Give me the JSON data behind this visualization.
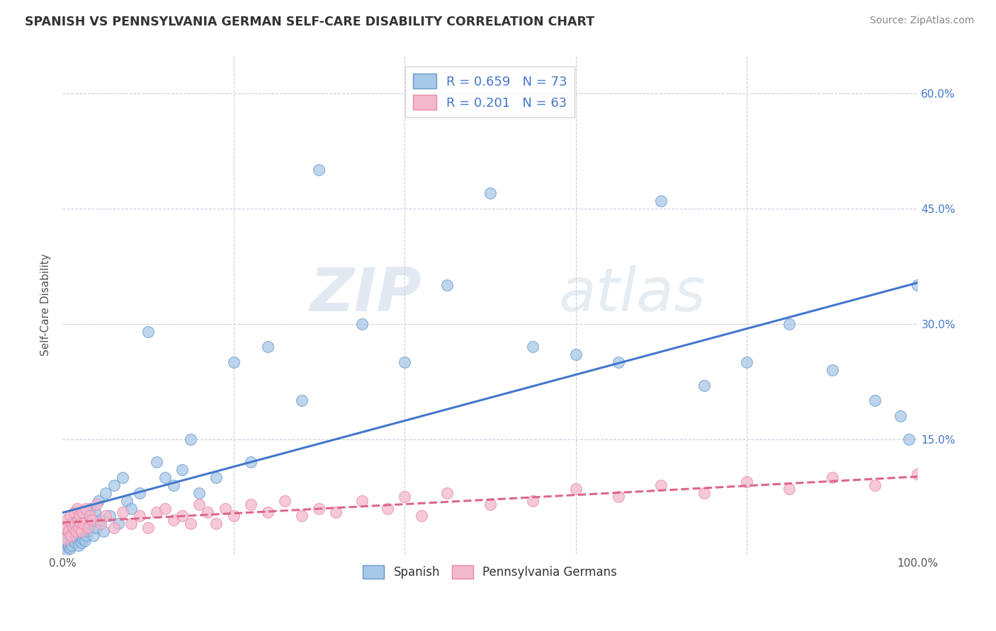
{
  "title": "SPANISH VS PENNSYLVANIA GERMAN SELF-CARE DISABILITY CORRELATION CHART",
  "source": "Source: ZipAtlas.com",
  "ylabel": "Self-Care Disability",
  "xlim": [
    0,
    100
  ],
  "ylim": [
    0,
    65
  ],
  "y_ticks": [
    0,
    15,
    30,
    45,
    60
  ],
  "right_y_tick_labels": [
    "",
    "15.0%",
    "30.0%",
    "45.0%",
    "60.0%"
  ],
  "spanish_face_color": "#a8c8e8",
  "spanish_edge_color": "#6699cc",
  "penn_face_color": "#f4b8cc",
  "penn_edge_color": "#e888aa",
  "spanish_line_color": "#4477cc",
  "penn_line_color": "#dd6688",
  "background_color": "#ffffff",
  "grid_color": "#c8d0dc",
  "watermark_text": "ZIPatlas",
  "R_spanish": 0.659,
  "N_spanish": 73,
  "R_penn": 0.201,
  "N_penn": 63,
  "spanish_x": [
    0.2,
    0.3,
    0.4,
    0.5,
    0.6,
    0.7,
    0.8,
    0.9,
    1.0,
    1.1,
    1.2,
    1.3,
    1.4,
    1.5,
    1.6,
    1.7,
    1.8,
    1.9,
    2.0,
    2.1,
    2.2,
    2.3,
    2.4,
    2.5,
    2.6,
    2.7,
    2.8,
    3.0,
    3.2,
    3.4,
    3.6,
    3.8,
    4.0,
    4.2,
    4.5,
    4.8,
    5.0,
    5.5,
    6.0,
    6.5,
    7.0,
    7.5,
    8.0,
    9.0,
    10.0,
    11.0,
    12.0,
    13.0,
    14.0,
    15.0,
    16.0,
    18.0,
    20.0,
    22.0,
    24.0,
    28.0,
    30.0,
    35.0,
    40.0,
    45.0,
    50.0,
    55.0,
    60.0,
    65.0,
    70.0,
    75.0,
    80.0,
    85.0,
    90.0,
    95.0,
    98.0,
    99.0,
    100.0
  ],
  "spanish_y": [
    1.0,
    2.0,
    0.5,
    1.5,
    3.0,
    1.0,
    2.5,
    0.8,
    2.0,
    1.2,
    3.5,
    1.8,
    2.8,
    1.5,
    4.0,
    2.0,
    3.0,
    1.2,
    2.5,
    4.5,
    1.5,
    3.2,
    2.0,
    5.0,
    1.8,
    3.8,
    2.5,
    3.0,
    6.0,
    4.0,
    2.5,
    5.5,
    3.5,
    7.0,
    4.5,
    3.0,
    8.0,
    5.0,
    9.0,
    4.0,
    10.0,
    7.0,
    6.0,
    8.0,
    29.0,
    12.0,
    10.0,
    9.0,
    11.0,
    15.0,
    8.0,
    10.0,
    25.0,
    12.0,
    27.0,
    20.0,
    50.0,
    30.0,
    25.0,
    35.0,
    47.0,
    27.0,
    26.0,
    25.0,
    46.0,
    22.0,
    25.0,
    30.0,
    24.0,
    20.0,
    18.0,
    15.0,
    35.0
  ],
  "penn_x": [
    0.2,
    0.3,
    0.5,
    0.7,
    0.9,
    1.0,
    1.1,
    1.2,
    1.4,
    1.5,
    1.6,
    1.7,
    1.8,
    1.9,
    2.0,
    2.1,
    2.2,
    2.3,
    2.5,
    2.7,
    3.0,
    3.2,
    3.5,
    4.0,
    4.5,
    5.0,
    6.0,
    7.0,
    8.0,
    9.0,
    10.0,
    11.0,
    12.0,
    13.0,
    14.0,
    15.0,
    16.0,
    17.0,
    18.0,
    19.0,
    20.0,
    22.0,
    24.0,
    26.0,
    28.0,
    30.0,
    32.0,
    35.0,
    38.0,
    40.0,
    42.0,
    45.0,
    50.0,
    55.0,
    60.0,
    65.0,
    70.0,
    75.0,
    80.0,
    85.0,
    90.0,
    95.0,
    100.0
  ],
  "penn_y": [
    3.5,
    2.0,
    4.5,
    3.0,
    5.0,
    2.5,
    4.0,
    3.5,
    5.5,
    4.0,
    3.0,
    6.0,
    4.5,
    3.5,
    5.0,
    4.0,
    3.0,
    5.5,
    4.0,
    6.0,
    3.5,
    5.0,
    4.5,
    6.5,
    4.0,
    5.0,
    3.5,
    5.5,
    4.0,
    5.0,
    3.5,
    5.5,
    6.0,
    4.5,
    5.0,
    4.0,
    6.5,
    5.5,
    4.0,
    6.0,
    5.0,
    6.5,
    5.5,
    7.0,
    5.0,
    6.0,
    5.5,
    7.0,
    6.0,
    7.5,
    5.0,
    8.0,
    6.5,
    7.0,
    8.5,
    7.5,
    9.0,
    8.0,
    9.5,
    8.5,
    10.0,
    9.0,
    10.5
  ]
}
